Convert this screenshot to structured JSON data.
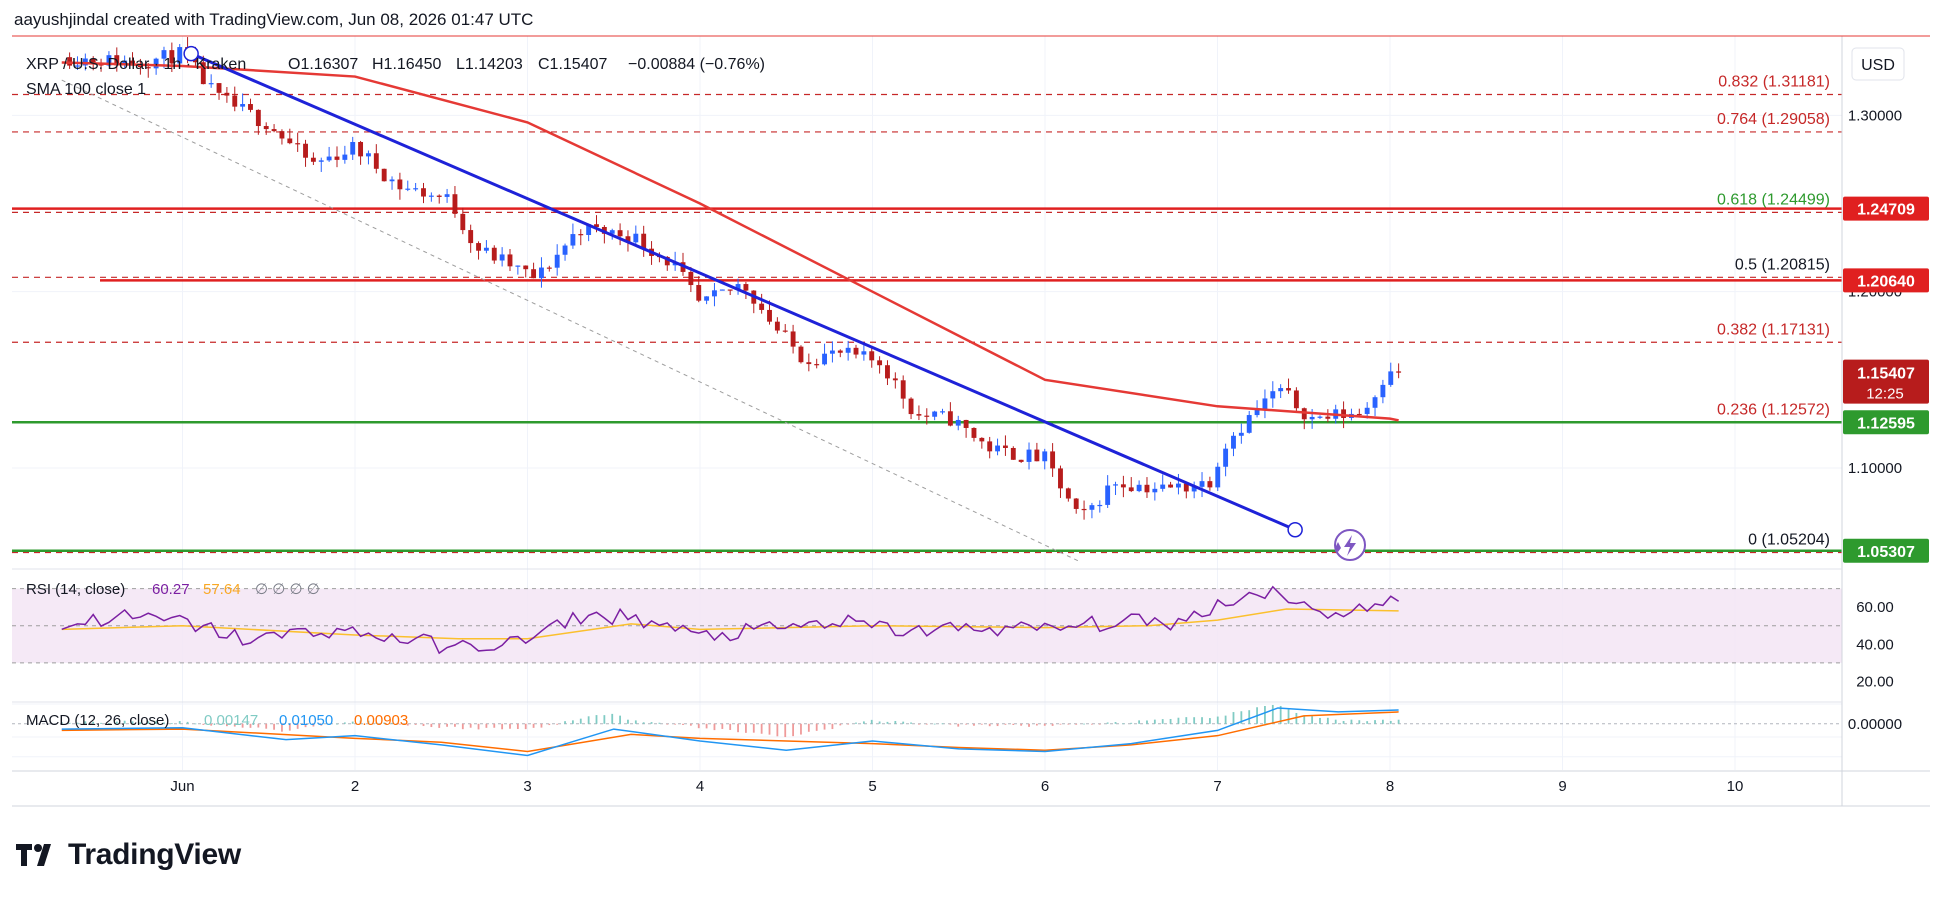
{
  "header": {
    "caption": "aayushjindal created with TradingView.com, Jun 08, 2026 01:47 UTC"
  },
  "legend": {
    "symbol": "XRP / U.S. Dollar · 1h · Kraken",
    "open": "O1.16307",
    "high": "H1.16450",
    "low": "L1.14203",
    "close": "C1.15407",
    "change": "−0.00884 (−0.76%)",
    "sma": "SMA 100 close 1"
  },
  "currency_button": "USD",
  "brand": {
    "name": "TradingView"
  },
  "colors": {
    "bull": "#2962ff",
    "bear": "#b71c1c",
    "sma": "#e53935",
    "trendline": "#1e22d8",
    "resistance": "#e02020",
    "support": "#2e9a2e",
    "fib_red": "#c62828",
    "fib_green": "#2e9a2e",
    "rsi": "#7b1fa2",
    "rsi_ma": "#fbc02d",
    "macd": "#2196f3",
    "signal": "#ff6d00"
  },
  "chart_data": {
    "type": "candlestick",
    "title": "XRP / U.S. Dollar · 1h · Kraken",
    "ylim": [
      1.045,
      1.345
    ],
    "xlim": [
      0.3,
      11.0
    ],
    "x_ticks": [
      "Jun",
      "2",
      "3",
      "4",
      "5",
      "6",
      "7",
      "8",
      "9",
      "10"
    ],
    "y_ticks": [
      "1.30000",
      "1.20000",
      "1.10000"
    ],
    "waypoints": [
      [
        0.3,
        1.333
      ],
      [
        0.75,
        1.33
      ],
      [
        1.0,
        1.335
      ],
      [
        1.2,
        1.31
      ],
      [
        1.5,
        1.295
      ],
      [
        1.75,
        1.272
      ],
      [
        2.0,
        1.282
      ],
      [
        2.25,
        1.26
      ],
      [
        2.55,
        1.252
      ],
      [
        2.7,
        1.225
      ],
      [
        2.9,
        1.215
      ],
      [
        3.05,
        1.207
      ],
      [
        3.3,
        1.236
      ],
      [
        3.6,
        1.232
      ],
      [
        3.85,
        1.215
      ],
      [
        4.0,
        1.192
      ],
      [
        4.25,
        1.205
      ],
      [
        4.45,
        1.178
      ],
      [
        4.6,
        1.162
      ],
      [
        4.8,
        1.165
      ],
      [
        5.05,
        1.16
      ],
      [
        5.25,
        1.13
      ],
      [
        5.45,
        1.128
      ],
      [
        5.7,
        1.11
      ],
      [
        6.0,
        1.105
      ],
      [
        6.2,
        1.07
      ],
      [
        6.4,
        1.092
      ],
      [
        6.7,
        1.088
      ],
      [
        6.95,
        1.092
      ],
      [
        7.05,
        1.115
      ],
      [
        7.35,
        1.145
      ],
      [
        7.55,
        1.128
      ],
      [
        7.85,
        1.132
      ],
      [
        8.0,
        1.158
      ],
      [
        8.05,
        1.154
      ]
    ],
    "candle_count": 170,
    "last_price": 1.15407,
    "sma": {
      "name": "SMA 100 close",
      "points": [
        [
          0.3,
          1.33
        ],
        [
          1.0,
          1.328
        ],
        [
          2.0,
          1.322
        ],
        [
          3.0,
          1.296
        ],
        [
          4.0,
          1.25
        ],
        [
          5.0,
          1.2
        ],
        [
          6.0,
          1.15
        ],
        [
          7.0,
          1.135
        ],
        [
          8.0,
          1.128
        ],
        [
          8.05,
          1.127
        ]
      ]
    },
    "trendline": {
      "from": [
        1.05,
        1.335
      ],
      "to": [
        7.45,
        1.065
      ]
    },
    "channel_line": {
      "from": [
        0.3,
        1.32
      ],
      "to": [
        6.2,
        1.047
      ]
    },
    "fibonacci": [
      {
        "label": "0.832",
        "value": "(1.31181)",
        "price": 1.31181,
        "color": "red"
      },
      {
        "label": "0.764",
        "value": "(1.29058)",
        "price": 1.29058,
        "color": "red"
      },
      {
        "label": "0.618",
        "value": "(1.24499)",
        "price": 1.24499,
        "color": "green"
      },
      {
        "label": "0.5",
        "value": "(1.20815)",
        "price": 1.20815,
        "color": "black"
      },
      {
        "label": "0.382",
        "value": "(1.17131)",
        "price": 1.17131,
        "color": "red"
      },
      {
        "label": "0.236",
        "value": "(1.12572)",
        "price": 1.12572,
        "color": "red"
      },
      {
        "label": "0",
        "value": "(1.05204)",
        "price": 1.05204,
        "color": "black"
      }
    ],
    "horizontal_lines": [
      {
        "price": 1.24709,
        "label": "1.24709",
        "kind": "resistance"
      },
      {
        "price": 1.2064,
        "label": "1.20640",
        "kind": "resistance"
      },
      {
        "price": 1.12595,
        "label": "1.12595",
        "kind": "support"
      },
      {
        "price": 1.05307,
        "label": "1.05307",
        "kind": "support"
      }
    ],
    "last_price_label": "1.15407",
    "countdown": "12:25",
    "rsi": {
      "legend": "RSI (14, close)",
      "value": "60.27",
      "ma": "57.64",
      "extra": "∅ ∅ ∅ ∅",
      "ylim": [
        10,
        80
      ],
      "y_ticks": [
        "60.00",
        "40.00",
        "20.00"
      ],
      "band": [
        30,
        70
      ],
      "waypoints": [
        [
          0.3,
          50
        ],
        [
          0.6,
          55
        ],
        [
          1.0,
          52
        ],
        [
          1.4,
          42
        ],
        [
          1.8,
          48
        ],
        [
          2.2,
          44
        ],
        [
          2.6,
          38
        ],
        [
          3.0,
          42
        ],
        [
          3.3,
          55
        ],
        [
          3.6,
          55
        ],
        [
          4.0,
          44
        ],
        [
          4.4,
          48
        ],
        [
          4.8,
          52
        ],
        [
          5.2,
          47
        ],
        [
          5.6,
          49
        ],
        [
          6.0,
          48
        ],
        [
          6.4,
          52
        ],
        [
          6.8,
          52
        ],
        [
          7.0,
          62
        ],
        [
          7.35,
          70
        ],
        [
          7.55,
          57
        ],
        [
          7.8,
          58
        ],
        [
          8.0,
          63
        ],
        [
          8.05,
          60
        ]
      ],
      "ma_waypoints": [
        [
          0.3,
          48
        ],
        [
          1.0,
          50
        ],
        [
          2.0,
          45
        ],
        [
          2.6,
          43
        ],
        [
          3.0,
          43
        ],
        [
          3.6,
          51
        ],
        [
          4.0,
          48
        ],
        [
          5.0,
          50
        ],
        [
          6.0,
          49
        ],
        [
          6.6,
          50
        ],
        [
          7.0,
          53
        ],
        [
          7.4,
          59
        ],
        [
          8.05,
          58
        ]
      ]
    },
    "macd": {
      "legend": "MACD (12, 26, close)",
      "hist": "0.00147",
      "macd": "0.01050",
      "signal": "0.00903",
      "ylim": [
        -0.035,
        0.015
      ],
      "y_ticks": [
        "0.00000"
      ],
      "waypoints": [
        [
          0.3,
          -0.004
        ],
        [
          1.0,
          -0.003
        ],
        [
          1.6,
          -0.012
        ],
        [
          2.0,
          -0.009
        ],
        [
          2.5,
          -0.016
        ],
        [
          3.0,
          -0.024
        ],
        [
          3.5,
          -0.004
        ],
        [
          4.0,
          -0.013
        ],
        [
          4.5,
          -0.02
        ],
        [
          5.0,
          -0.013
        ],
        [
          5.5,
          -0.019
        ],
        [
          6.0,
          -0.021
        ],
        [
          6.5,
          -0.015
        ],
        [
          7.0,
          -0.005
        ],
        [
          7.35,
          0.012
        ],
        [
          7.7,
          0.009
        ],
        [
          8.05,
          0.0105
        ]
      ],
      "signal_waypoints": [
        [
          0.3,
          -0.005
        ],
        [
          1.0,
          -0.004
        ],
        [
          2.0,
          -0.011
        ],
        [
          2.5,
          -0.014
        ],
        [
          3.0,
          -0.021
        ],
        [
          3.6,
          -0.008
        ],
        [
          4.0,
          -0.011
        ],
        [
          5.0,
          -0.015
        ],
        [
          5.5,
          -0.018
        ],
        [
          6.0,
          -0.02
        ],
        [
          6.5,
          -0.016
        ],
        [
          7.0,
          -0.009
        ],
        [
          7.5,
          0.006
        ],
        [
          8.05,
          0.009
        ]
      ]
    }
  }
}
